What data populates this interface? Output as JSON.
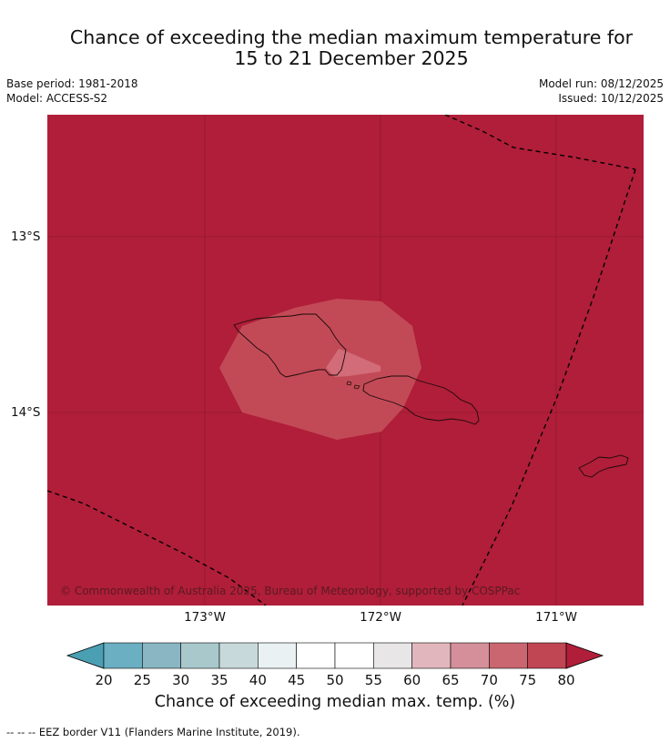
{
  "title": {
    "line1": "Chance of exceeding the median maximum temperature for",
    "line2": "15 to 21 December 2025"
  },
  "meta": {
    "base_period": "Base period: 1981-2018",
    "model": "Model: ACCESS-S2",
    "model_run": "Model run: 08/12/2025",
    "issued": "Issued: 10/12/2025"
  },
  "map": {
    "copyright": "© Commonwealth of Australia 2025, Bureau of Meteorology, supported by COSPPac",
    "lat_labels": [
      "13°S",
      "14°S"
    ],
    "lon_labels": [
      "173°W",
      "172°W",
      "171°W"
    ],
    "background_colour": "#b01e39",
    "zone_75_colour": "#c24a56",
    "zone_70_colour": "#d16c78"
  },
  "colorbar": {
    "ticks": [
      "20",
      "25",
      "30",
      "35",
      "40",
      "45",
      "50",
      "55",
      "60",
      "65",
      "70",
      "75",
      "80"
    ],
    "colours": [
      "#4a9fb3",
      "#6aafc2",
      "#8ab6c3",
      "#a8c8cc",
      "#c8d9dc",
      "#eaf1f3",
      "#ffffff",
      "#ffffff",
      "#e8e6e7",
      "#e1b7bd",
      "#d48f9a",
      "#c96670",
      "#c04653",
      "#b01e39"
    ],
    "title": "Chance of exceeding median max. temp. (%)"
  },
  "footer": {
    "legend": "--  --  -- EEZ border V11 (Flanders Marine Institute, 2019)."
  }
}
